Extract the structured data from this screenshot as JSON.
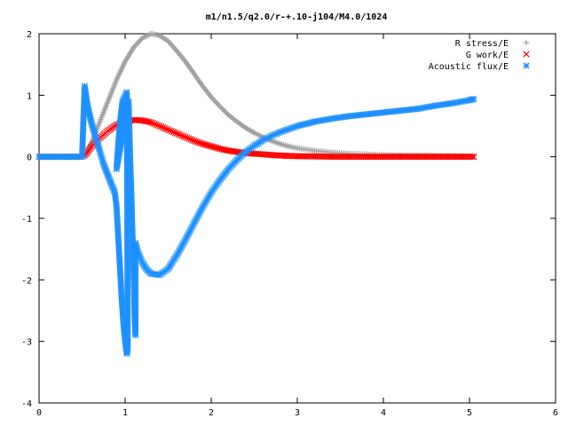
{
  "chart_data": {
    "type": "scatter",
    "title": "m1/n1.5/q2.0/r-+.10-j104/M4.0/1024",
    "xlabel": "",
    "ylabel": "",
    "xlim": [
      0,
      6
    ],
    "ylim": [
      -4,
      2
    ],
    "xticks": [
      "0",
      "1",
      "2",
      "3",
      "4",
      "5",
      "6"
    ],
    "yticks": [
      "2",
      "1",
      "0",
      "-1",
      "-2",
      "-3",
      "-4"
    ],
    "grid": false,
    "legend_position": "top-right",
    "series": [
      {
        "name": "R stress/E",
        "marker": "+",
        "color": "#a0a0a0",
        "points": [
          [
            0.0,
            0.0
          ],
          [
            0.5,
            0.0
          ],
          [
            0.55,
            0.05
          ],
          [
            0.6,
            0.2
          ],
          [
            0.7,
            0.55
          ],
          [
            0.8,
            0.9
          ],
          [
            0.9,
            1.25
          ],
          [
            1.0,
            1.55
          ],
          [
            1.1,
            1.78
          ],
          [
            1.2,
            1.93
          ],
          [
            1.3,
            2.0
          ],
          [
            1.4,
            1.97
          ],
          [
            1.5,
            1.88
          ],
          [
            1.6,
            1.72
          ],
          [
            1.7,
            1.55
          ],
          [
            1.8,
            1.35
          ],
          [
            1.9,
            1.15
          ],
          [
            2.0,
            0.97
          ],
          [
            2.1,
            0.82
          ],
          [
            2.2,
            0.68
          ],
          [
            2.3,
            0.57
          ],
          [
            2.4,
            0.47
          ],
          [
            2.5,
            0.39
          ],
          [
            2.6,
            0.32
          ],
          [
            2.7,
            0.26
          ],
          [
            2.8,
            0.21
          ],
          [
            2.9,
            0.17
          ],
          [
            3.0,
            0.14
          ],
          [
            3.2,
            0.1
          ],
          [
            3.4,
            0.07
          ],
          [
            3.6,
            0.05
          ],
          [
            3.8,
            0.04
          ],
          [
            4.0,
            0.03
          ],
          [
            4.5,
            0.02
          ],
          [
            5.0,
            0.01
          ],
          [
            5.05,
            0.01
          ]
        ]
      },
      {
        "name": "G work/E",
        "marker": "x",
        "color": "#ff0000",
        "points": [
          [
            0.0,
            0.0
          ],
          [
            0.5,
            0.0
          ],
          [
            0.55,
            0.05
          ],
          [
            0.6,
            0.15
          ],
          [
            0.7,
            0.3
          ],
          [
            0.8,
            0.42
          ],
          [
            0.9,
            0.52
          ],
          [
            1.0,
            0.57
          ],
          [
            1.1,
            0.6
          ],
          [
            1.2,
            0.59
          ],
          [
            1.3,
            0.56
          ],
          [
            1.4,
            0.5
          ],
          [
            1.5,
            0.44
          ],
          [
            1.6,
            0.38
          ],
          [
            1.7,
            0.32
          ],
          [
            1.8,
            0.26
          ],
          [
            1.9,
            0.21
          ],
          [
            2.0,
            0.17
          ],
          [
            2.1,
            0.13
          ],
          [
            2.2,
            0.1
          ],
          [
            2.3,
            0.08
          ],
          [
            2.4,
            0.06
          ],
          [
            2.5,
            0.05
          ],
          [
            2.6,
            0.04
          ],
          [
            2.8,
            0.02
          ],
          [
            3.0,
            0.01
          ],
          [
            3.5,
            0.0
          ],
          [
            4.0,
            0.0
          ],
          [
            4.5,
            0.0
          ],
          [
            5.05,
            0.0
          ]
        ]
      },
      {
        "name": "Acoustic flux/E",
        "marker": "*",
        "color": "#1e90ff",
        "points": [
          [
            0.0,
            0.0
          ],
          [
            0.1,
            0.0
          ],
          [
            0.2,
            0.0
          ],
          [
            0.3,
            0.0
          ],
          [
            0.4,
            0.0
          ],
          [
            0.5,
            0.0
          ],
          [
            0.53,
            1.15
          ],
          [
            0.56,
            0.85
          ],
          [
            0.6,
            0.6
          ],
          [
            0.65,
            0.35
          ],
          [
            0.7,
            0.12
          ],
          [
            0.75,
            -0.12
          ],
          [
            0.8,
            -0.3
          ],
          [
            0.85,
            -0.48
          ],
          [
            0.88,
            -0.58
          ],
          [
            0.9,
            -0.8
          ],
          [
            0.92,
            -1.3
          ],
          [
            0.94,
            -1.8
          ],
          [
            0.96,
            -2.3
          ],
          [
            0.98,
            -2.7
          ],
          [
            1.0,
            -3.0
          ],
          [
            1.02,
            -3.2
          ],
          [
            1.03,
            -3.1
          ],
          [
            1.02,
            1.05
          ],
          [
            0.97,
            0.9
          ],
          [
            0.94,
            0.55
          ],
          [
            0.92,
            0.2
          ],
          [
            0.9,
            -0.2
          ],
          [
            1.04,
            0.9
          ],
          [
            1.05,
            0.4
          ],
          [
            1.06,
            -0.1
          ],
          [
            1.07,
            -0.5
          ],
          [
            1.08,
            -1.0
          ],
          [
            1.09,
            -1.5
          ],
          [
            1.1,
            -2.0
          ],
          [
            1.11,
            -2.6
          ],
          [
            1.12,
            -2.9
          ],
          [
            1.12,
            -1.4
          ],
          [
            1.15,
            -1.55
          ],
          [
            1.2,
            -1.72
          ],
          [
            1.25,
            -1.83
          ],
          [
            1.3,
            -1.9
          ],
          [
            1.4,
            -1.92
          ],
          [
            1.5,
            -1.82
          ],
          [
            1.6,
            -1.6
          ],
          [
            1.7,
            -1.35
          ],
          [
            1.8,
            -1.08
          ],
          [
            1.9,
            -0.82
          ],
          [
            2.0,
            -0.58
          ],
          [
            2.1,
            -0.38
          ],
          [
            2.2,
            -0.2
          ],
          [
            2.3,
            -0.05
          ],
          [
            2.4,
            0.08
          ],
          [
            2.5,
            0.18
          ],
          [
            2.6,
            0.27
          ],
          [
            2.7,
            0.34
          ],
          [
            2.8,
            0.4
          ],
          [
            2.9,
            0.45
          ],
          [
            3.0,
            0.5
          ],
          [
            3.2,
            0.57
          ],
          [
            3.4,
            0.62
          ],
          [
            3.6,
            0.66
          ],
          [
            3.8,
            0.69
          ],
          [
            4.0,
            0.72
          ],
          [
            4.2,
            0.75
          ],
          [
            4.4,
            0.78
          ],
          [
            4.6,
            0.83
          ],
          [
            4.8,
            0.87
          ],
          [
            5.0,
            0.92
          ],
          [
            5.05,
            0.94
          ]
        ]
      }
    ]
  }
}
